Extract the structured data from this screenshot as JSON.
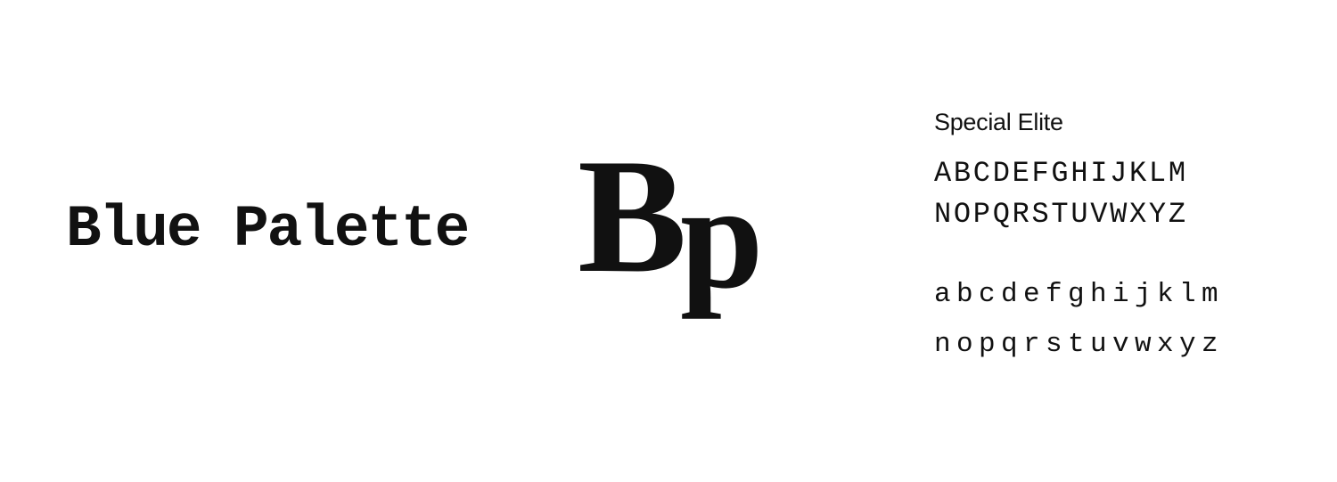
{
  "sample": {
    "name": "Blue Palette",
    "monogram_upper": "B",
    "monogram_lower": "p"
  },
  "specimen": {
    "font_name": "Special Elite",
    "uppercase_row_1": "ABCDEFGHIJKLM",
    "uppercase_row_2": "NOPQRSTUVWXYZ",
    "lowercase_row_1": "abcdefghijklm",
    "lowercase_row_2": "nopqrstuvwxyz"
  },
  "colors": {
    "background": "#ffffff",
    "text": "#111111"
  }
}
